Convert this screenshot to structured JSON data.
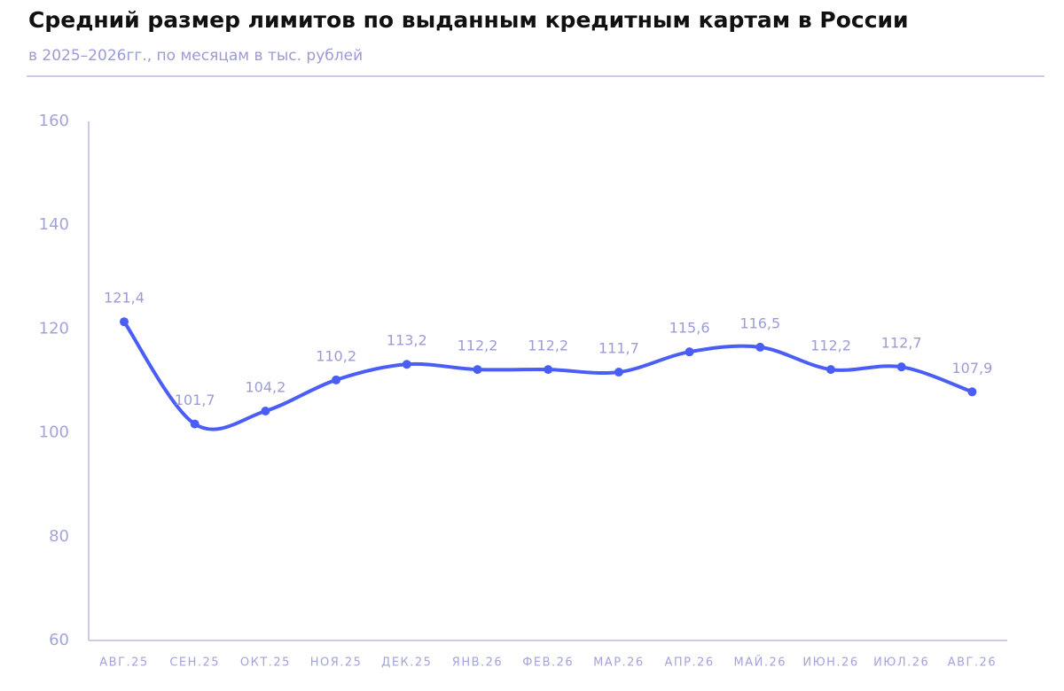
{
  "chart_data": {
    "type": "line",
    "title": "Средний размер лимитов по выданным кредитным картам в России",
    "subtitle": "в 2025–2026гг., по месяцам в тыс. рублей",
    "categories": [
      "АВГ.25",
      "СЕН.25",
      "ОКТ.25",
      "НОЯ.25",
      "ДЕК.25",
      "ЯНВ.26",
      "ФЕВ.26",
      "МАР.26",
      "АПР.26",
      "МАЙ.26",
      "ИЮН.26",
      "ИЮЛ.26",
      "АВГ.26"
    ],
    "values": [
      121.4,
      101.7,
      104.2,
      110.2,
      113.2,
      112.2,
      112.2,
      111.7,
      115.6,
      116.5,
      112.2,
      112.7,
      107.9
    ],
    "value_labels": [
      "121,4",
      "101,7",
      "104,2",
      "110,2",
      "113,2",
      "112,2",
      "112,2",
      "111,7",
      "115,6",
      "116,5",
      "112,2",
      "112,7",
      "107,9"
    ],
    "color": "#4a5ef5",
    "ylim": [
      60,
      160
    ],
    "yticks": [
      60,
      80,
      100,
      120,
      140,
      160
    ],
    "grid": false
  }
}
